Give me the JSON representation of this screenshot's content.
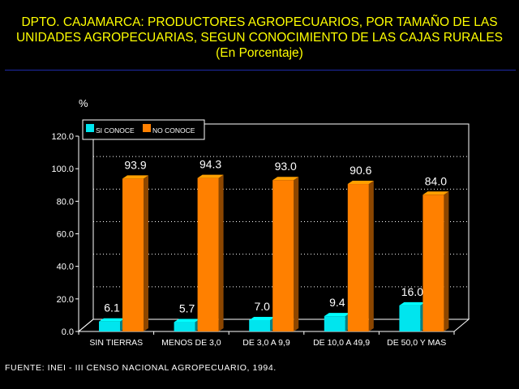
{
  "title": {
    "line1": "DPTO. CAJAMARCA: PRODUCTORES AGROPECUARIOS, POR TAMAÑO DE LAS",
    "line2": "UNIDADES AGROPECUARIAS, SEGUN CONOCIMIENTO DE LAS CAJAS RURALES",
    "line3": "(En Porcentaje)"
  },
  "source": "FUENTE: INEI - III CENSO NACIONAL AGROPECUARIO, 1994.",
  "colors": {
    "background": "#000000",
    "title": "#ffff00",
    "si_conoce": "#00e5ee",
    "no_conoce": "#ff8000",
    "text": "#ffffff"
  },
  "chart_data": {
    "type": "bar",
    "ylabel": "%",
    "ylim": [
      0,
      120
    ],
    "yticks": [
      "0.0",
      "20.0",
      "40.0",
      "60.0",
      "80.0",
      "100.0",
      "120.0"
    ],
    "grid": true,
    "legend_position": "top-left",
    "categories": [
      "SIN TIERRAS",
      "MENOS DE 3,0",
      "DE 3,0  A 9,9",
      "DE 10,0 A 49,9",
      "DE 50,0 Y MAS"
    ],
    "series": [
      {
        "name": "SI CONOCE",
        "values": [
          6.1,
          5.7,
          7.0,
          9.4,
          16.0
        ],
        "labels": [
          "6.1",
          "5.7",
          "7.0",
          "9.4",
          "16.0"
        ]
      },
      {
        "name": "NO CONOCE",
        "values": [
          93.9,
          94.3,
          93.0,
          90.6,
          84.0
        ],
        "labels": [
          "93.9",
          "94.3",
          "93.0",
          "90.6",
          "84.0"
        ]
      }
    ]
  }
}
